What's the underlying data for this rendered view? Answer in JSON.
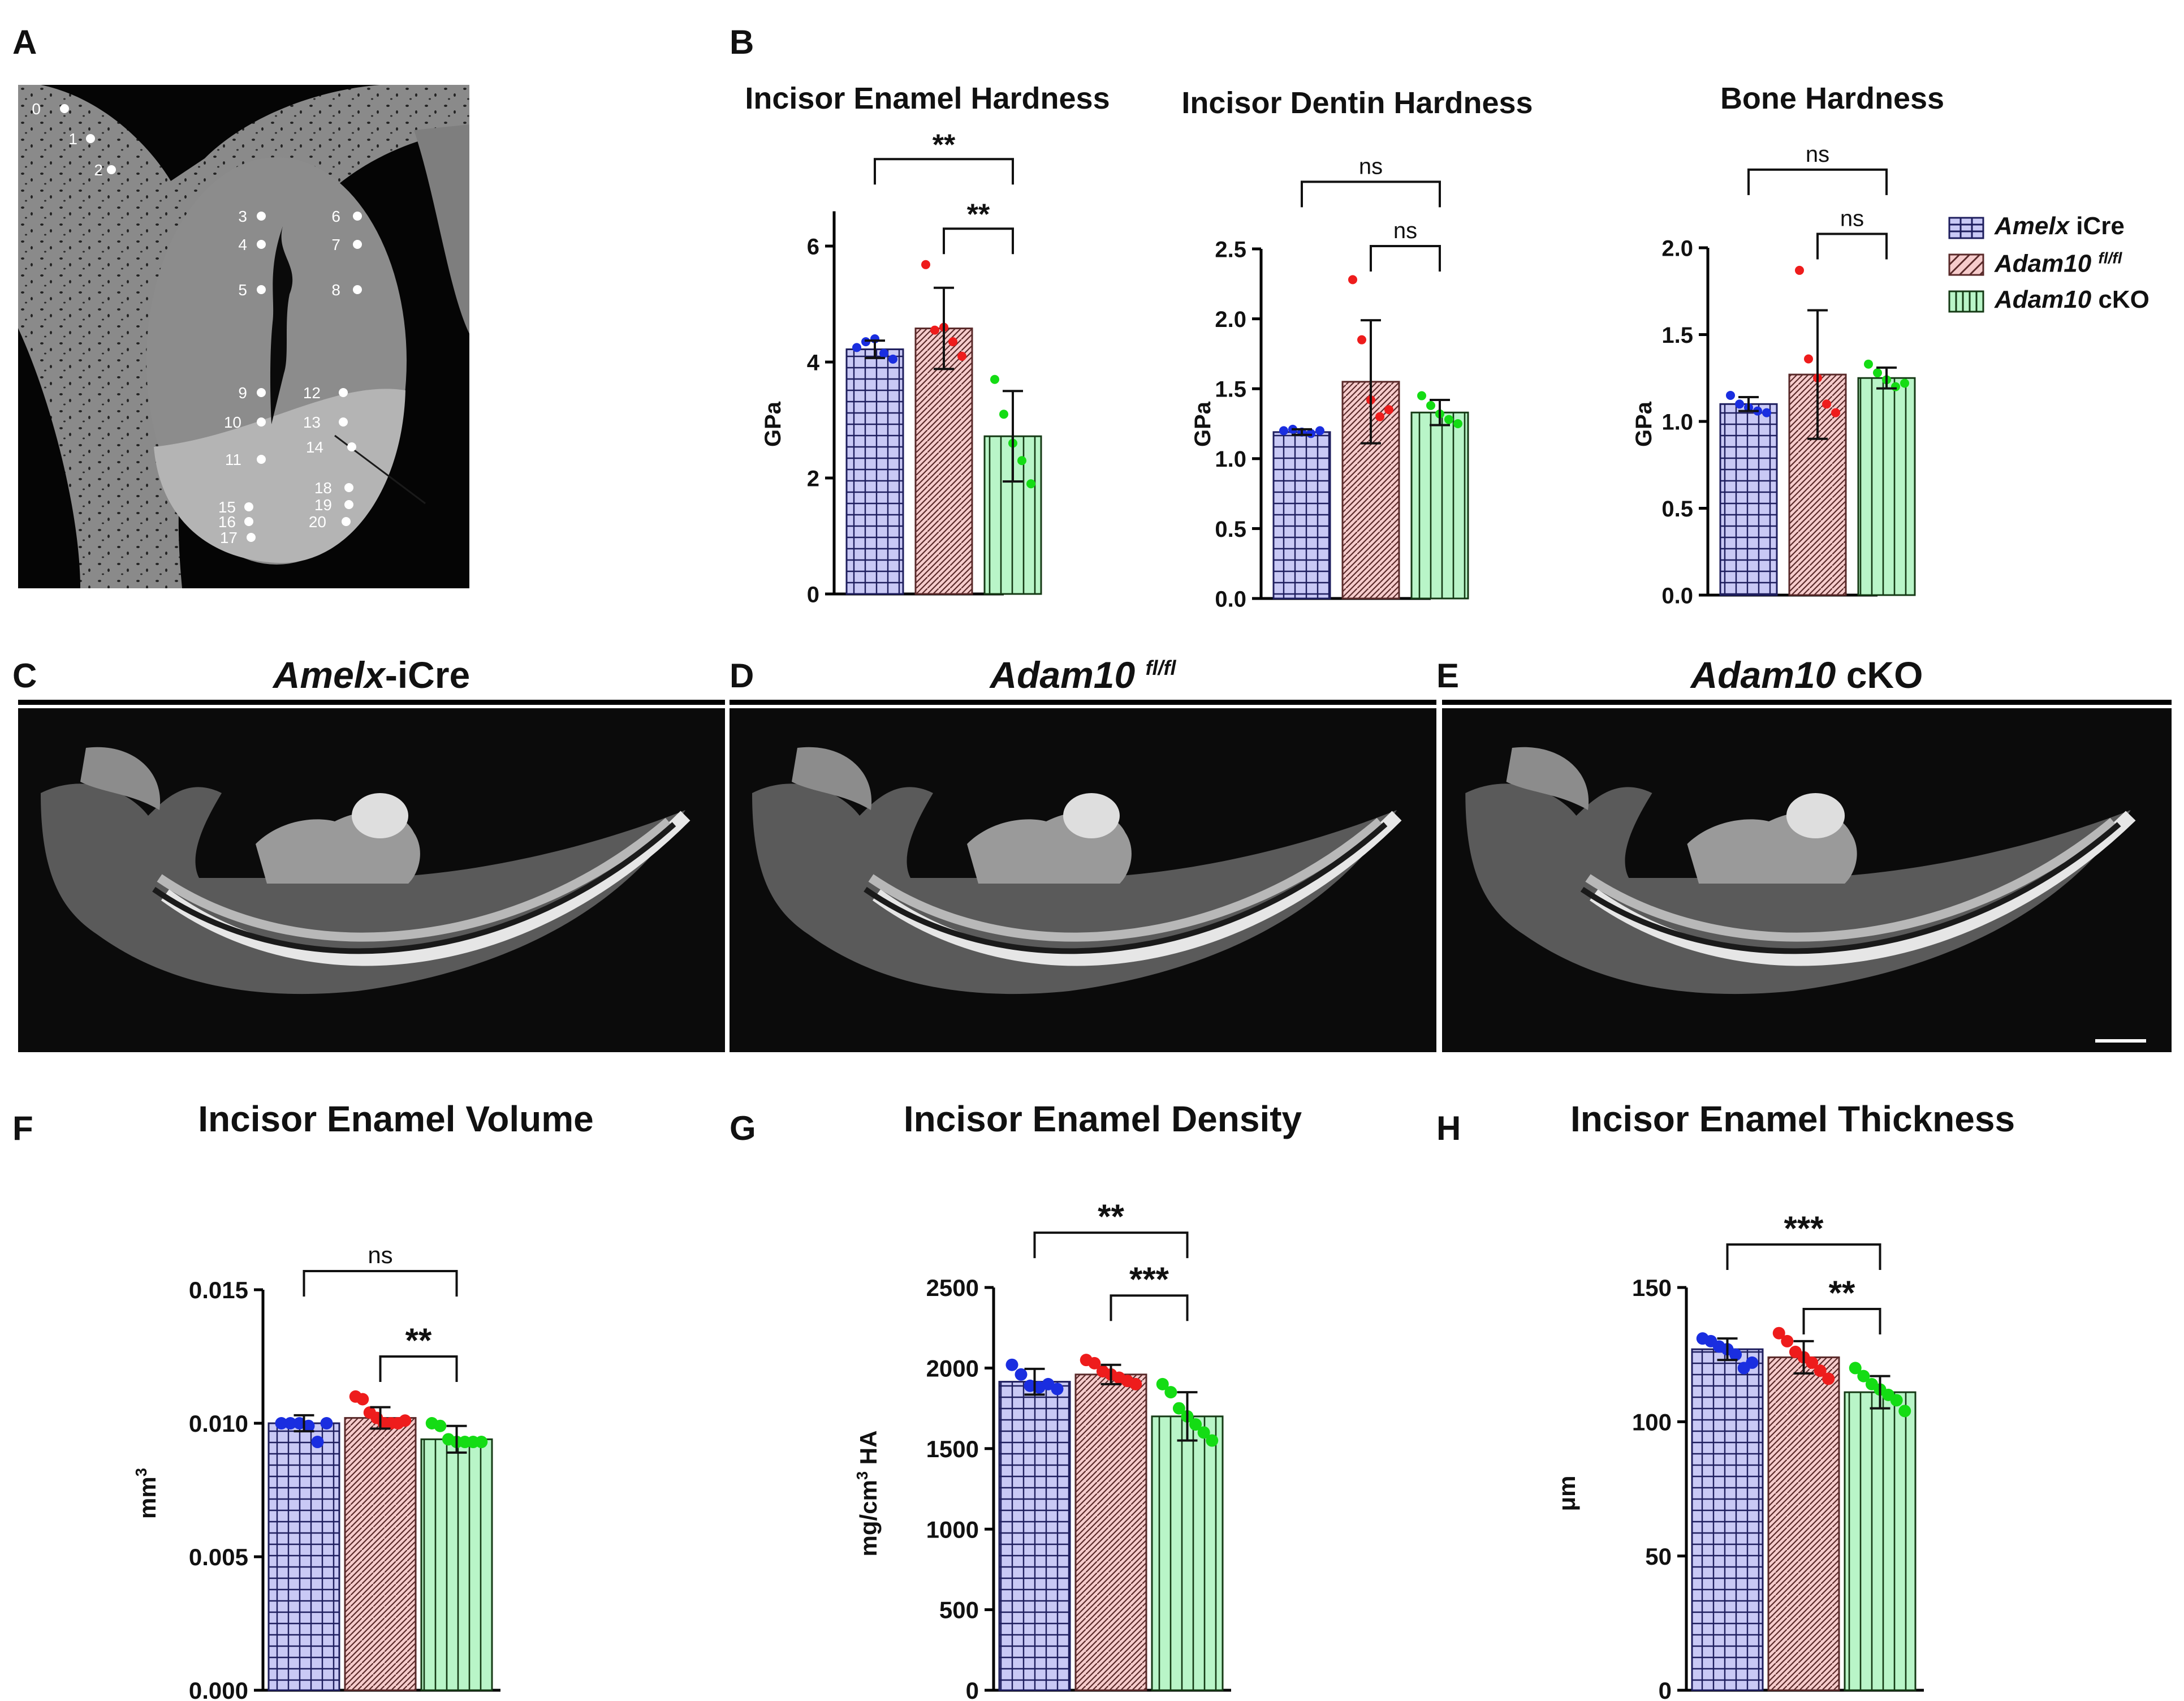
{
  "panel_labels": {
    "A": "A",
    "B": "B",
    "C": "C",
    "D": "D",
    "E": "E",
    "F": "F",
    "G": "G",
    "H": "H"
  },
  "colors": {
    "amelx_fill": "#c9c9f5",
    "amelx_line": "#1e1e5e",
    "amelx_dot": "#1a2ee0",
    "fl_fill": "#f6cccc",
    "fl_line": "#5a2a2a",
    "fl_dot": "#ee1c1c",
    "cko_fill": "#b9f5c8",
    "cko_line": "#153a15",
    "cko_dot": "#14dc14"
  },
  "panelA": {
    "points": [
      {
        "label": "0"
      },
      {
        "label": "1"
      },
      {
        "label": "2"
      },
      {
        "label": "3"
      },
      {
        "label": "4"
      },
      {
        "label": "5"
      },
      {
        "label": "6"
      },
      {
        "label": "7"
      },
      {
        "label": "8"
      },
      {
        "label": "9"
      },
      {
        "label": "10"
      },
      {
        "label": "11"
      },
      {
        "label": "12"
      },
      {
        "label": "13"
      },
      {
        "label": "14"
      },
      {
        "label": "15"
      },
      {
        "label": "16"
      },
      {
        "label": "17"
      },
      {
        "label": "18"
      },
      {
        "label": "19"
      },
      {
        "label": "20"
      }
    ]
  },
  "legend": {
    "entries": [
      {
        "italic": "Amelx",
        "normal": " iCre",
        "sup": ""
      },
      {
        "italic": "Adam10",
        "normal": " ",
        "sup": "fl/fl"
      },
      {
        "italic": "Adam10",
        "normal": " cKO",
        "sup": ""
      }
    ]
  },
  "ct": {
    "C": {
      "italic": "Amelx",
      "normal": "-iCre",
      "sup": ""
    },
    "D": {
      "italic": "Adam10",
      "normal": " ",
      "sup": "fl/fl"
    },
    "E": {
      "italic": "Adam10",
      "normal": " cKO",
      "sup": ""
    }
  },
  "chart_data": [
    {
      "id": "B1",
      "type": "bar",
      "title": "Incisor Enamel Hardness",
      "ylabel": "GPa",
      "ylim": [
        0,
        6.6
      ],
      "ticks": [
        0,
        2,
        4,
        6
      ],
      "series": [
        {
          "name": "Amelx iCre",
          "values": [
            4.22
          ],
          "sd": 0.15,
          "points": [
            4.25,
            4.35,
            4.4,
            4.15,
            4.05
          ]
        },
        {
          "name": "Adam10 fl/fl",
          "values": [
            4.58
          ],
          "sd": 0.7,
          "points": [
            5.68,
            4.55,
            4.6,
            4.35,
            4.1
          ]
        },
        {
          "name": "Adam10 cKO",
          "values": [
            2.72
          ],
          "sd": 0.78,
          "points": [
            3.7,
            3.1,
            2.6,
            2.3,
            1.9
          ]
        }
      ],
      "comparisons": [
        {
          "a": 0,
          "b": 2,
          "label": "**",
          "y": 7.5
        },
        {
          "a": 1,
          "b": 2,
          "label": "**",
          "y": 6.3
        }
      ]
    },
    {
      "id": "B2",
      "type": "bar",
      "title": "Incisor Dentin Hardness",
      "ylabel": "GPa",
      "ylim": [
        0,
        2.5
      ],
      "ticks": [
        0.0,
        0.5,
        1.0,
        1.5,
        2.0,
        2.5
      ],
      "series": [
        {
          "name": "Amelx iCre",
          "values": [
            1.19
          ],
          "sd": 0.02,
          "points": [
            1.2,
            1.21,
            1.19,
            1.18,
            1.2
          ]
        },
        {
          "name": "Adam10 fl/fl",
          "values": [
            1.55
          ],
          "sd": 0.44,
          "points": [
            2.28,
            1.85,
            1.42,
            1.3,
            1.35
          ]
        },
        {
          "name": "Adam10 cKO",
          "values": [
            1.33
          ],
          "sd": 0.09,
          "points": [
            1.45,
            1.38,
            1.32,
            1.28,
            1.25
          ]
        }
      ],
      "comparisons": [
        {
          "a": 0,
          "b": 2,
          "label": "ns",
          "y": 2.98
        },
        {
          "a": 1,
          "b": 2,
          "label": "ns",
          "y": 2.52
        }
      ]
    },
    {
      "id": "B3",
      "type": "bar",
      "title": "Bone Hardness",
      "ylabel": "GPa",
      "ylim": [
        0,
        2.0
      ],
      "ticks": [
        0.0,
        0.5,
        1.0,
        1.5,
        2.0
      ],
      "series": [
        {
          "name": "Amelx iCre",
          "values": [
            1.1
          ],
          "sd": 0.04,
          "points": [
            1.15,
            1.1,
            1.08,
            1.06,
            1.05
          ]
        },
        {
          "name": "Adam10 fl/fl",
          "values": [
            1.27
          ],
          "sd": 0.37,
          "points": [
            1.87,
            1.36,
            1.25,
            1.1,
            1.05
          ]
        },
        {
          "name": "Adam10 cKO",
          "values": [
            1.25
          ],
          "sd": 0.06,
          "points": [
            1.33,
            1.28,
            1.24,
            1.2,
            1.22
          ]
        }
      ],
      "comparisons": [
        {
          "a": 0,
          "b": 2,
          "label": "ns",
          "y": 2.45
        },
        {
          "a": 1,
          "b": 2,
          "label": "ns",
          "y": 2.08
        }
      ]
    },
    {
      "id": "F",
      "type": "bar",
      "title": "Incisor Enamel Volume",
      "ylabel": "mm3",
      "ylim": [
        0,
        0.015
      ],
      "ticks": [
        0.0,
        0.005,
        0.01,
        0.015
      ],
      "tick_labels": [
        "0.000",
        "0.005",
        "0.010",
        "0.015"
      ],
      "series": [
        {
          "name": "Amelx iCre",
          "values": [
            0.01
          ],
          "sd": 0.0003,
          "points": [
            0.01,
            0.01,
            0.01,
            0.0099,
            0.0093,
            0.01
          ]
        },
        {
          "name": "Adam10 fl/fl",
          "values": [
            0.0102
          ],
          "sd": 0.0004,
          "points": [
            0.011,
            0.0109,
            0.0104,
            0.0102,
            0.01,
            0.01,
            0.01,
            0.0101
          ]
        },
        {
          "name": "Adam10 cKO",
          "values": [
            0.0094
          ],
          "sd": 0.0005,
          "points": [
            0.01,
            0.0099,
            0.0094,
            0.0093,
            0.0093,
            0.0093,
            0.0093
          ]
        }
      ],
      "comparisons": [
        {
          "a": 0,
          "b": 2,
          "label": "ns",
          "y": 0.0157
        },
        {
          "a": 1,
          "b": 2,
          "label": "**",
          "y": 0.0125
        }
      ]
    },
    {
      "id": "G",
      "type": "bar",
      "title": "Incisor Enamel Density",
      "ylabel": "mg/cm3 HA",
      "ylim": [
        0,
        2500
      ],
      "ticks": [
        0,
        500,
        1000,
        1500,
        2000,
        2500
      ],
      "series": [
        {
          "name": "Amelx iCre",
          "values": [
            1915
          ],
          "sd": 80,
          "points": [
            2020,
            1960,
            1890,
            1880,
            1900,
            1870
          ]
        },
        {
          "name": "Adam10 fl/fl",
          "values": [
            1960
          ],
          "sd": 60,
          "points": [
            2050,
            2030,
            1980,
            1960,
            1940,
            1920,
            1900
          ]
        },
        {
          "name": "Adam10 cKO",
          "values": [
            1700
          ],
          "sd": 150,
          "points": [
            1900,
            1850,
            1750,
            1700,
            1650,
            1600,
            1550
          ]
        }
      ],
      "comparisons": [
        {
          "a": 0,
          "b": 2,
          "label": "**",
          "y": 2840
        },
        {
          "a": 1,
          "b": 2,
          "label": "***",
          "y": 2450
        }
      ]
    },
    {
      "id": "H",
      "type": "bar",
      "title": "Incisor Enamel Thickness",
      "ylabel": "μm",
      "ylim": [
        0,
        150
      ],
      "ticks": [
        0,
        50,
        100,
        150
      ],
      "series": [
        {
          "name": "Amelx iCre",
          "values": [
            127
          ],
          "sd": 4,
          "points": [
            131,
            130,
            128,
            127,
            125,
            120,
            122
          ]
        },
        {
          "name": "Adam10 fl/fl",
          "values": [
            124
          ],
          "sd": 6,
          "points": [
            133,
            130,
            126,
            124,
            122,
            119,
            116
          ]
        },
        {
          "name": "Adam10 cKO",
          "values": [
            111
          ],
          "sd": 6,
          "points": [
            120,
            117,
            114,
            112,
            110,
            108,
            104
          ]
        }
      ],
      "comparisons": [
        {
          "a": 0,
          "b": 2,
          "label": "***",
          "y": 166
        },
        {
          "a": 1,
          "b": 2,
          "label": "**",
          "y": 142
        }
      ]
    }
  ]
}
